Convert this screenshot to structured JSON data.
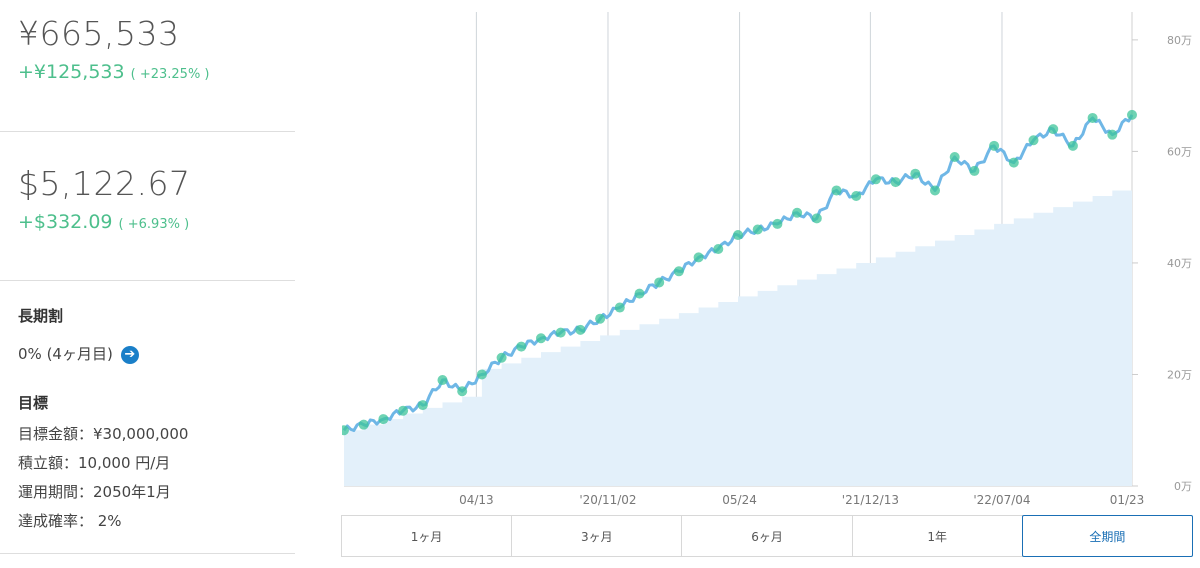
{
  "summary_jpy": {
    "value": "¥665,533",
    "gain": "+¥125,533",
    "gain_pct": "( +23.25% )"
  },
  "summary_usd": {
    "value": "$5,122.67",
    "gain": "+$332.09",
    "gain_pct": "( +6.93% )"
  },
  "long_term": {
    "heading": "長期割",
    "value": "0% (4ヶ月目)"
  },
  "goal": {
    "heading": "目標",
    "target_amount": "目標金額：¥30,000,000",
    "monthly": "積立額：10,000 円/月",
    "period": "運用期間：2050年1月",
    "probability": "達成確率： 2%"
  },
  "range_buttons": [
    "1ヶ月",
    "3ヶ月",
    "6ヶ月",
    "1年",
    "全期間"
  ],
  "active_range": "全期間",
  "colors": {
    "gain": "#4dbf8c",
    "line": "#6fb7e6",
    "deposit_fill": "#e3f0fa",
    "marker": "#3dc49a",
    "active": "#1a6fb5"
  },
  "chart_data": {
    "type": "line",
    "y_ticks": [
      "0万",
      "20万",
      "40万",
      "60万",
      "80万"
    ],
    "x_ticks": [
      "04/13",
      "'20/11/02",
      "05/24",
      "'21/12/13",
      "'22/07/04",
      "01/23"
    ],
    "ylim": [
      0,
      850000
    ],
    "series": [
      {
        "x": [
          "2019-09",
          "2019-10",
          "2019-11",
          "2019-12",
          "2020-01",
          "2020-02",
          "2020-03",
          "2020-04",
          "2020-05",
          "2020-06",
          "2020-07",
          "2020-08",
          "2020-09",
          "2020-10",
          "2020-11",
          "2020-12",
          "2021-01",
          "2021-02",
          "2021-03",
          "2021-04",
          "2021-05",
          "2021-06",
          "2021-07",
          "2021-08",
          "2021-09",
          "2021-10",
          "2021-11",
          "2021-12",
          "2022-01",
          "2022-02",
          "2022-03",
          "2022-04",
          "2022-05",
          "2022-06",
          "2022-07",
          "2022-08",
          "2022-09",
          "2022-10",
          "2022-11",
          "2022-12",
          "2023-01"
        ],
        "values": [
          100000,
          110000,
          120000,
          135000,
          145000,
          190000,
          170000,
          200000,
          230000,
          250000,
          265000,
          275000,
          280000,
          300000,
          320000,
          345000,
          365000,
          385000,
          410000,
          425000,
          450000,
          460000,
          470000,
          490000,
          480000,
          530000,
          520000,
          550000,
          545000,
          560000,
          530000,
          590000,
          565000,
          610000,
          580000,
          620000,
          640000,
          610000,
          660000,
          630000,
          665533
        ]
      },
      {
        "x": [
          "2019-09",
          "2019-10",
          "2019-11",
          "2019-12",
          "2020-01",
          "2020-02",
          "2020-03",
          "2020-04",
          "2020-05",
          "2020-06",
          "2020-07",
          "2020-08",
          "2020-09",
          "2020-10",
          "2020-11",
          "2020-12",
          "2021-01",
          "2021-02",
          "2021-03",
          "2021-04",
          "2021-05",
          "2021-06",
          "2021-07",
          "2021-08",
          "2021-09",
          "2021-10",
          "2021-11",
          "2021-12",
          "2022-01",
          "2022-02",
          "2022-03",
          "2022-04",
          "2022-05",
          "2022-06",
          "2022-07",
          "2022-08",
          "2022-09",
          "2022-10",
          "2022-11",
          "2022-12",
          "2023-01"
        ],
        "values": [
          100000,
          110000,
          120000,
          130000,
          140000,
          150000,
          160000,
          210000,
          220000,
          230000,
          240000,
          250000,
          260000,
          270000,
          280000,
          290000,
          300000,
          310000,
          320000,
          330000,
          340000,
          350000,
          360000,
          370000,
          380000,
          390000,
          400000,
          410000,
          420000,
          430000,
          440000,
          450000,
          460000,
          470000,
          480000,
          490000,
          500000,
          510000,
          520000,
          530000,
          540000
        ]
      }
    ]
  }
}
